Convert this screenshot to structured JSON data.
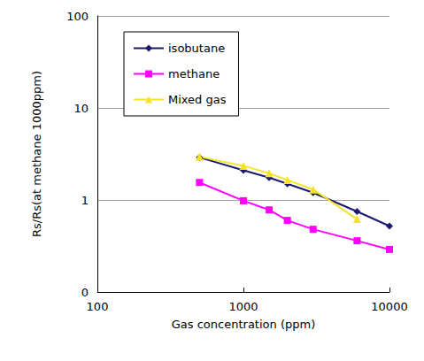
{
  "chart_data": {
    "type": "line",
    "x_label": "Gas concentration (ppm)",
    "y_label": "Rs/Rs(at methane 1000ppm)",
    "log": true,
    "grid": true,
    "legend": "upper left",
    "xlim": [
      100,
      10000
    ],
    "xticks": [
      100,
      1000,
      10000
    ],
    "ylim": [
      0.1,
      100
    ],
    "yticks": [
      {
        "value": 0.1,
        "label": "0"
      },
      1,
      10,
      100
    ],
    "series": [
      {
        "name": "isobutane",
        "color": "#1a1a6e",
        "marker": "diamond",
        "x": [
          500,
          1000,
          1500,
          2000,
          3000,
          6000,
          10000
        ],
        "values": [
          2.9,
          2.1,
          1.75,
          1.5,
          1.2,
          0.75,
          0.52
        ]
      },
      {
        "name": "methane",
        "color": "#ff00ff",
        "marker": "square",
        "x": [
          500,
          1000,
          1500,
          2000,
          3000,
          6000,
          10000
        ],
        "values": [
          1.55,
          0.98,
          0.78,
          0.6,
          0.48,
          0.36,
          0.29
        ]
      },
      {
        "name": "Mixed gas",
        "color": "#f5e32a",
        "marker": "triangle",
        "x": [
          500,
          1000,
          1500,
          2000,
          3000,
          6000
        ],
        "values": [
          2.95,
          2.35,
          1.95,
          1.65,
          1.3,
          0.62
        ]
      }
    ]
  }
}
